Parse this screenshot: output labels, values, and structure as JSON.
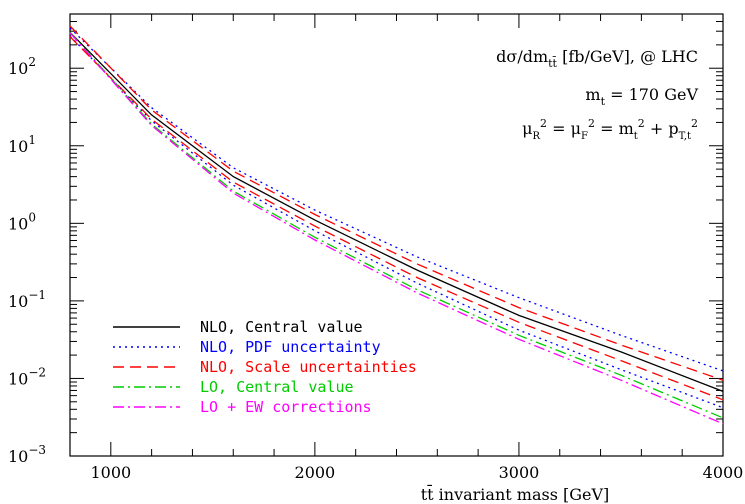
{
  "chart_data": {
    "type": "line",
    "title": "",
    "xlabel": "tt̄ invariant mass [GeV]",
    "ylabel": "",
    "xlim": [
      800,
      4000
    ],
    "ylim": [
      0.001,
      500
    ],
    "yscale": "log",
    "x_ticks": [
      1000,
      2000,
      3000,
      4000
    ],
    "y_ticks": [
      {
        "mantissa": "10",
        "exp": "−3",
        "value": 0.001
      },
      {
        "mantissa": "10",
        "exp": "−2",
        "value": 0.01
      },
      {
        "mantissa": "10",
        "exp": "−1",
        "value": 0.1
      },
      {
        "mantissa": "10",
        "exp": "0",
        "value": 1
      },
      {
        "mantissa": "10",
        "exp": "1",
        "value": 10
      },
      {
        "mantissa": "10",
        "exp": "2",
        "value": 100
      }
    ],
    "annotations": {
      "line1": {
        "a": "dσ/dm",
        "sub": "tt̄",
        "b": "  [fb/GeV],  @ LHC"
      },
      "line2": {
        "a": "m",
        "sub": "t",
        "b": " = 170 GeV"
      },
      "line3": {
        "mu1": "μ",
        "sub1": "R",
        "sup1": "2",
        "eq1": " = μ",
        "sub2": "F",
        "sup2": "2",
        "eq2": " = m",
        "sub3": "t",
        "sup3": "2",
        "plus": " + p",
        "sub4": "T,t",
        "sup4": "2"
      }
    },
    "legend_position": "bottom-left",
    "series": [
      {
        "name": "NLO, Central value",
        "color": "#000000",
        "dash": "solid",
        "x": [
          800,
          1200,
          1600,
          2000,
          2500,
          3000,
          3500,
          4000
        ],
        "y": [
          290,
          25,
          4.0,
          1.1,
          0.25,
          0.065,
          0.022,
          0.0068
        ]
      },
      {
        "name": "NLO, PDF uncertainty",
        "color": "#0000ff",
        "dash": "dotted",
        "x": [
          800,
          1200,
          1600,
          2000,
          2500,
          3000,
          3500,
          4000
        ],
        "y": [
          330,
          31,
          5.2,
          1.48,
          0.37,
          0.11,
          0.036,
          0.0125
        ]
      },
      {
        "name": "NLO, PDF uncertainty",
        "color": "#0000ff",
        "dash": "dotted",
        "x": [
          800,
          1200,
          1600,
          2000,
          2500,
          3000,
          3500,
          4000
        ],
        "y": [
          260,
          21,
          3.1,
          0.8,
          0.17,
          0.042,
          0.013,
          0.0042
        ]
      },
      {
        "name": "NLO, Scale uncertainties",
        "color": "#ff0000",
        "dash": "dashed",
        "x": [
          800,
          1200,
          1600,
          2000,
          2500,
          3000,
          3500,
          4000
        ],
        "y": [
          350,
          29,
          4.7,
          1.3,
          0.3,
          0.082,
          0.027,
          0.0095
        ]
      },
      {
        "name": "NLO, Scale uncertainties",
        "color": "#ff0000",
        "dash": "dashed",
        "x": [
          800,
          1200,
          1600,
          2000,
          2500,
          3000,
          3500,
          4000
        ],
        "y": [
          255,
          22,
          3.4,
          0.92,
          0.2,
          0.053,
          0.017,
          0.0053
        ]
      },
      {
        "name": "LO, Central value",
        "color": "#00cc00",
        "dash": "dashdot",
        "x": [
          800,
          1200,
          1600,
          2000,
          2500,
          3000,
          3500,
          4000
        ],
        "y": [
          290,
          19,
          2.6,
          0.66,
          0.14,
          0.036,
          0.011,
          0.0031
        ]
      },
      {
        "name": "LO + EW corrections",
        "color": "#ff00ff",
        "dash": "dashdot",
        "x": [
          800,
          1200,
          1600,
          2000,
          2500,
          3000,
          3500,
          4000
        ],
        "y": [
          285,
          18.3,
          2.45,
          0.61,
          0.127,
          0.032,
          0.0095,
          0.0026
        ]
      }
    ],
    "legend": [
      {
        "label": "NLO, Central value",
        "color": "#000000",
        "dash": "solid"
      },
      {
        "label": "NLO, PDF uncertainty",
        "color": "#0000ff",
        "dash": "dotted"
      },
      {
        "label": "NLO, Scale uncertainties",
        "color": "#ff0000",
        "dash": "dashed"
      },
      {
        "label": "LO, Central value",
        "color": "#00cc00",
        "dash": "dashdot"
      },
      {
        "label": "LO + EW corrections",
        "color": "#ff00ff",
        "dash": "dashdot"
      }
    ]
  }
}
